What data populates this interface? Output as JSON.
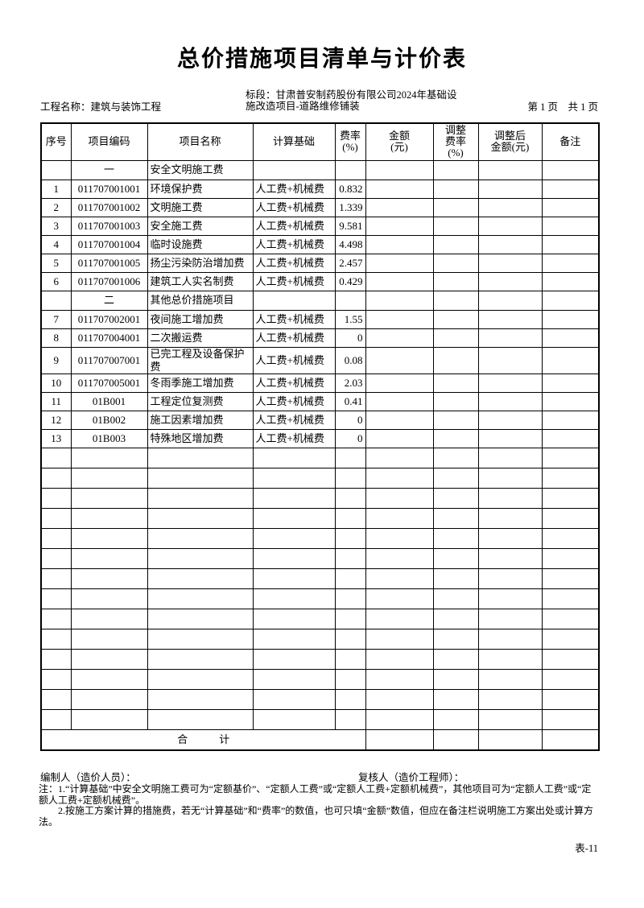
{
  "colors": {
    "ink": "#000000",
    "paper": "#ffffff"
  },
  "header": {
    "title": "总价措施项目清单与计价表",
    "project_name": "工程名称：建筑与装饰工程",
    "section": "标段：甘肃普安制药股份有限公司2024年基础设施改造项目-道路维修铺装",
    "page_indicator": "第 1 页　共 1 页"
  },
  "table": {
    "headers": [
      {
        "key": "seq",
        "label": "序号"
      },
      {
        "key": "code",
        "label": "项目编码"
      },
      {
        "key": "name",
        "label": "项目名称"
      },
      {
        "key": "basis",
        "label": "计算基础"
      },
      {
        "key": "rate",
        "label": "费率\n(%)"
      },
      {
        "key": "amount",
        "label": "金额\n(元)"
      },
      {
        "key": "adj_rate",
        "label": "调整\n费率\n(%)"
      },
      {
        "key": "adj_amount",
        "label": "调整后\n金额(元)"
      },
      {
        "key": "remark",
        "label": "备注"
      }
    ],
    "rows": [
      {
        "type": "section",
        "seq": "",
        "code": "一",
        "name": "安全文明施工费",
        "basis": "",
        "rate": ""
      },
      {
        "type": "item",
        "seq": "1",
        "code": "011707001001",
        "name": "环境保护费",
        "basis": "人工费+机械费",
        "rate": "0.832"
      },
      {
        "type": "item",
        "seq": "2",
        "code": "011707001002",
        "name": "文明施工费",
        "basis": "人工费+机械费",
        "rate": "1.339"
      },
      {
        "type": "item",
        "seq": "3",
        "code": "011707001003",
        "name": "安全施工费",
        "basis": "人工费+机械费",
        "rate": "9.581"
      },
      {
        "type": "item",
        "seq": "4",
        "code": "011707001004",
        "name": "临时设施费",
        "basis": "人工费+机械费",
        "rate": "4.498"
      },
      {
        "type": "item",
        "seq": "5",
        "code": "011707001005",
        "name": "扬尘污染防治增加费",
        "basis": "人工费+机械费",
        "rate": "2.457"
      },
      {
        "type": "item",
        "seq": "6",
        "code": "011707001006",
        "name": "建筑工人实名制费",
        "basis": "人工费+机械费",
        "rate": "0.429"
      },
      {
        "type": "section",
        "seq": "",
        "code": "二",
        "name": "其他总价措施项目",
        "basis": "",
        "rate": ""
      },
      {
        "type": "item",
        "seq": "7",
        "code": "011707002001",
        "name": "夜间施工增加费",
        "basis": "人工费+机械费",
        "rate": "1.55"
      },
      {
        "type": "item",
        "seq": "8",
        "code": "011707004001",
        "name": "二次搬运费",
        "basis": "人工费+机械费",
        "rate": "0"
      },
      {
        "type": "item",
        "seq": "9",
        "code": "011707007001",
        "name": "已完工程及设备保护费",
        "basis": "人工费+机械费",
        "rate": "0.08"
      },
      {
        "type": "item",
        "seq": "10",
        "code": "011707005001",
        "name": "冬雨季施工增加费",
        "basis": "人工费+机械费",
        "rate": "2.03"
      },
      {
        "type": "item",
        "seq": "11",
        "code": "01B001",
        "name": "工程定位复测费",
        "basis": "人工费+机械费",
        "rate": "0.41"
      },
      {
        "type": "item",
        "seq": "12",
        "code": "01B002",
        "name": "施工因素增加费",
        "basis": "人工费+机械费",
        "rate": "0"
      },
      {
        "type": "item",
        "seq": "13",
        "code": "01B003",
        "name": "特殊地区增加费",
        "basis": "人工费+机械费",
        "rate": "0"
      }
    ],
    "empty_row_count": 14,
    "total_row": {
      "label": "合　　　计"
    }
  },
  "footer": {
    "preparer": "编制人（造价人员）：",
    "reviewer": "复核人（造价工程师）：",
    "note1": "注：1.“计算基础”中安全文明施工费可为“定额基价”、“定额人工费”或“定额人工费+定额机械费”，其他项目可为“定额人工费”或“定额人工费+定额机械费”。",
    "note2": "2.按施工方案计算的措施费，若无“计算基础”和“费率”的数值，也可只填“金额”数值，但应在备注栏说明施工方案出处或计算方法。",
    "form_tag": "表-11"
  }
}
